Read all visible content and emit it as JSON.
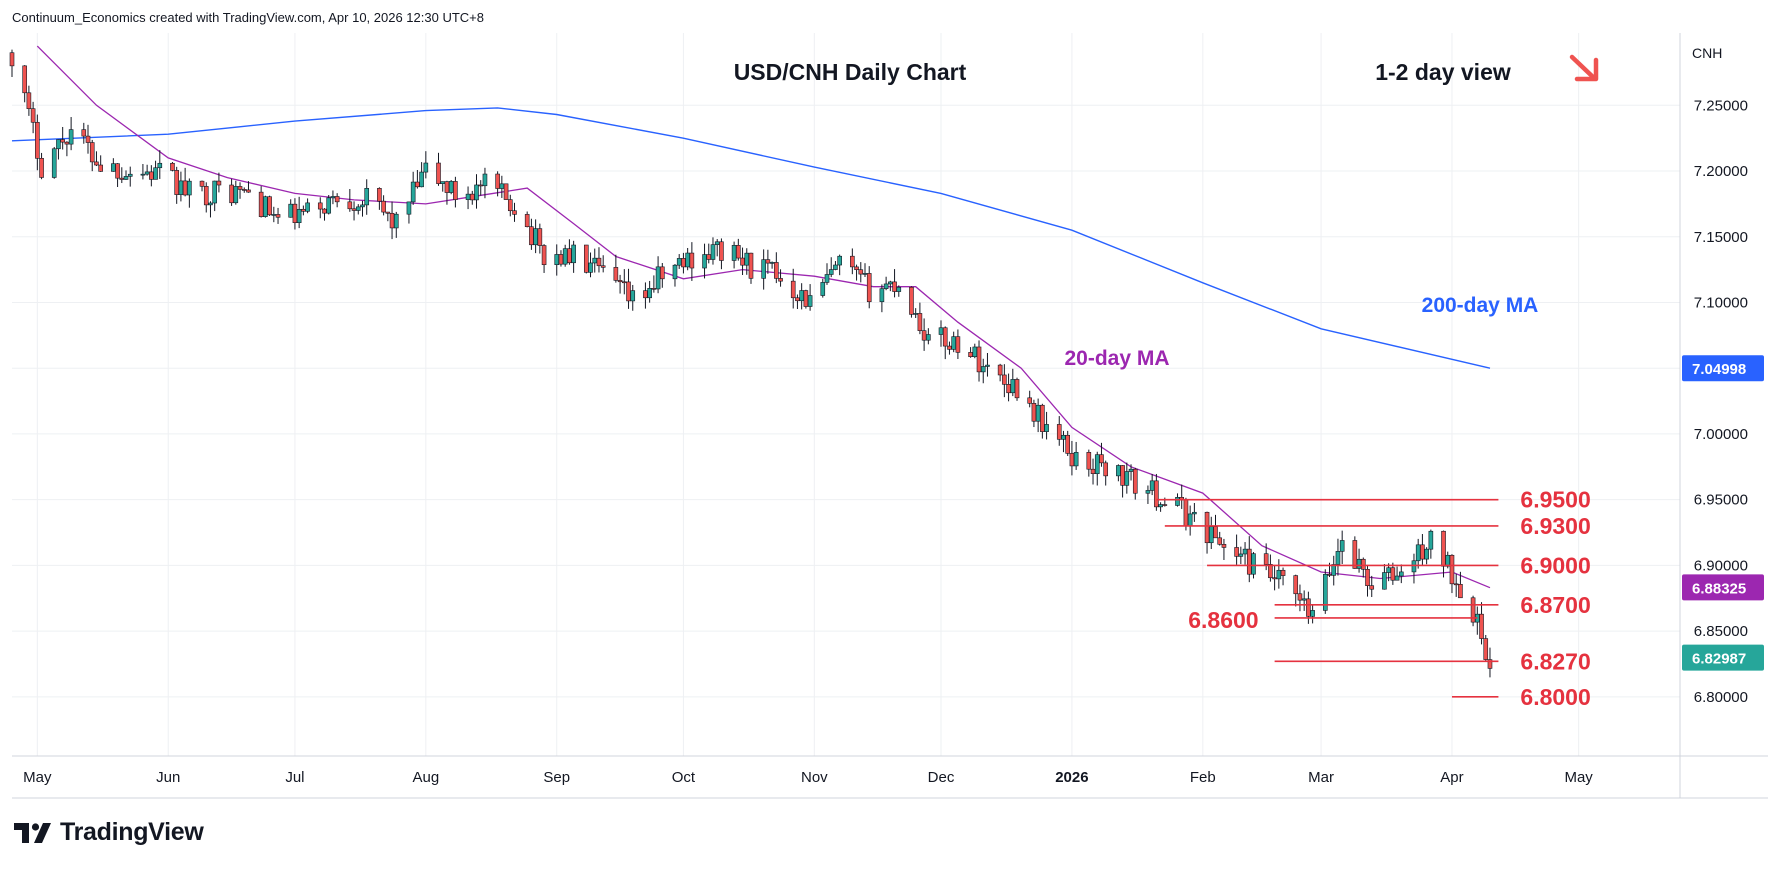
{
  "attribution": "Continuum_Economics created with TradingView.com, Apr 10, 2026 12:30 UTC+8",
  "brand": {
    "name": "TradingView",
    "icon": "tradingview-logo-icon"
  },
  "colors": {
    "up": "#26a69a",
    "down": "#ef5350",
    "wick": "#131722",
    "ma20": "#9c27b0",
    "ma200": "#2962ff",
    "level": "#e5323f",
    "grid": "#eef0f3",
    "axis_text": "#131722"
  },
  "chart_data": {
    "type": "candlestick",
    "title": "USD/CNH Daily Chart",
    "view_label": "1-2 day view",
    "view_icon": "arrow-down-right-icon",
    "symbol": "CNH",
    "x_ticks": [
      "May",
      "Jun",
      "Jul",
      "Aug",
      "Sep",
      "Oct",
      "Nov",
      "Dec",
      "2026",
      "Feb",
      "Mar",
      "Apr",
      "May"
    ],
    "y_ticks": [
      "7.25000",
      "7.20000",
      "7.15000",
      "7.10000",
      "7.05000",
      "7.00000",
      "6.95000",
      "6.90000",
      "6.85000",
      "6.80000"
    ],
    "ylim": [
      6.755,
      7.305
    ],
    "date_range": [
      "2025-04-25",
      "2026-05-25"
    ],
    "grid": true,
    "price_badges": [
      {
        "value": "7.04998",
        "series": "200-day MA",
        "color": "#2962ff"
      },
      {
        "value": "6.88325",
        "series": "20-day MA",
        "color": "#9c27b0"
      },
      {
        "value": "6.82987",
        "series": "Last price",
        "color": "#26a69a"
      }
    ],
    "annotations": [
      {
        "text": "20-day MA",
        "color": "#9c27b0"
      },
      {
        "text": "200-day MA",
        "color": "#2962ff"
      }
    ],
    "levels": [
      {
        "label": "6.9500",
        "value": 6.95,
        "from": "2026-01-21",
        "to": "2026-04-12",
        "label_side": "right"
      },
      {
        "label": "6.9300",
        "value": 6.93,
        "from": "2026-01-23",
        "to": "2026-04-12",
        "label_side": "right"
      },
      {
        "label": "6.9000",
        "value": 6.9,
        "from": "2026-02-02",
        "to": "2026-04-12",
        "label_side": "right"
      },
      {
        "label": "6.8700",
        "value": 6.87,
        "from": "2026-02-18",
        "to": "2026-04-12",
        "label_side": "right"
      },
      {
        "label": "6.8600",
        "value": 6.86,
        "from": "2026-02-18",
        "to": "2026-04-07",
        "label_side": "left"
      },
      {
        "label": "6.8270",
        "value": 6.827,
        "from": "2026-02-18",
        "to": "2026-04-12",
        "label_side": "right"
      },
      {
        "label": "6.8000",
        "value": 6.8,
        "from": "2026-04-01",
        "to": "2026-04-12",
        "label_side": "right"
      }
    ],
    "closes": [
      {
        "date": "2025-04-25",
        "close": 7.29
      },
      {
        "date": "2025-05-02",
        "close": 7.205
      },
      {
        "date": "2025-05-09",
        "close": 7.232
      },
      {
        "date": "2025-05-16",
        "close": 7.205
      },
      {
        "date": "2025-05-23",
        "close": 7.2
      },
      {
        "date": "2025-05-30",
        "close": 7.198
      },
      {
        "date": "2025-06-06",
        "close": 7.183
      },
      {
        "date": "2025-06-13",
        "close": 7.185
      },
      {
        "date": "2025-06-20",
        "close": 7.183
      },
      {
        "date": "2025-06-27",
        "close": 7.163
      },
      {
        "date": "2025-07-04",
        "close": 7.168
      },
      {
        "date": "2025-07-11",
        "close": 7.18
      },
      {
        "date": "2025-07-18",
        "close": 7.178
      },
      {
        "date": "2025-07-25",
        "close": 7.16
      },
      {
        "date": "2025-08-01",
        "close": 7.2
      },
      {
        "date": "2025-08-08",
        "close": 7.182
      },
      {
        "date": "2025-08-15",
        "close": 7.188
      },
      {
        "date": "2025-08-22",
        "close": 7.175
      },
      {
        "date": "2025-08-29",
        "close": 7.135
      },
      {
        "date": "2025-09-05",
        "close": 7.135
      },
      {
        "date": "2025-09-12",
        "close": 7.12
      },
      {
        "date": "2025-09-19",
        "close": 7.1
      },
      {
        "date": "2025-09-26",
        "close": 7.12
      },
      {
        "date": "2025-10-03",
        "close": 7.135
      },
      {
        "date": "2025-10-10",
        "close": 7.14
      },
      {
        "date": "2025-10-17",
        "close": 7.128
      },
      {
        "date": "2025-10-24",
        "close": 7.12
      },
      {
        "date": "2025-10-31",
        "close": 7.1
      },
      {
        "date": "2025-11-07",
        "close": 7.128
      },
      {
        "date": "2025-11-14",
        "close": 7.11
      },
      {
        "date": "2025-11-21",
        "close": 7.115
      },
      {
        "date": "2025-11-28",
        "close": 7.072
      },
      {
        "date": "2025-12-05",
        "close": 7.07
      },
      {
        "date": "2025-12-12",
        "close": 7.05
      },
      {
        "date": "2025-12-19",
        "close": 7.035
      },
      {
        "date": "2025-12-26",
        "close": 7.005
      },
      {
        "date": "2026-01-02",
        "close": 6.98
      },
      {
        "date": "2026-01-09",
        "close": 6.975
      },
      {
        "date": "2026-01-16",
        "close": 6.962
      },
      {
        "date": "2026-01-23",
        "close": 6.95
      },
      {
        "date": "2026-01-30",
        "close": 6.935
      },
      {
        "date": "2026-02-06",
        "close": 6.915
      },
      {
        "date": "2026-02-13",
        "close": 6.9
      },
      {
        "date": "2026-02-20",
        "close": 6.885
      },
      {
        "date": "2026-02-27",
        "close": 6.86
      },
      {
        "date": "2026-03-06",
        "close": 6.92
      },
      {
        "date": "2026-03-13",
        "close": 6.885
      },
      {
        "date": "2026-03-20",
        "close": 6.895
      },
      {
        "date": "2026-03-27",
        "close": 6.918
      },
      {
        "date": "2026-04-03",
        "close": 6.885
      },
      {
        "date": "2026-04-07",
        "close": 6.86
      },
      {
        "date": "2026-04-08",
        "close": 6.835
      },
      {
        "date": "2026-04-10",
        "close": 6.83
      }
    ],
    "ma20": [
      {
        "date": "2025-05-01",
        "value": 7.295
      },
      {
        "date": "2025-05-15",
        "value": 7.25
      },
      {
        "date": "2025-06-01",
        "value": 7.21
      },
      {
        "date": "2025-06-15",
        "value": 7.195
      },
      {
        "date": "2025-07-01",
        "value": 7.183
      },
      {
        "date": "2025-07-15",
        "value": 7.178
      },
      {
        "date": "2025-08-01",
        "value": 7.175
      },
      {
        "date": "2025-08-15",
        "value": 7.182
      },
      {
        "date": "2025-08-25",
        "value": 7.187
      },
      {
        "date": "2025-09-05",
        "value": 7.16
      },
      {
        "date": "2025-09-15",
        "value": 7.135
      },
      {
        "date": "2025-10-01",
        "value": 7.118
      },
      {
        "date": "2025-10-15",
        "value": 7.125
      },
      {
        "date": "2025-11-01",
        "value": 7.12
      },
      {
        "date": "2025-11-15",
        "value": 7.112
      },
      {
        "date": "2025-11-25",
        "value": 7.112
      },
      {
        "date": "2025-12-05",
        "value": 7.085
      },
      {
        "date": "2025-12-20",
        "value": 7.05
      },
      {
        "date": "2026-01-01",
        "value": 7.005
      },
      {
        "date": "2026-01-15",
        "value": 6.975
      },
      {
        "date": "2026-02-01",
        "value": 6.955
      },
      {
        "date": "2026-02-15",
        "value": 6.915
      },
      {
        "date": "2026-03-01",
        "value": 6.895
      },
      {
        "date": "2026-03-15",
        "value": 6.89
      },
      {
        "date": "2026-04-01",
        "value": 6.895
      },
      {
        "date": "2026-04-10",
        "value": 6.883
      }
    ],
    "ma200": [
      {
        "date": "2025-04-25",
        "value": 7.223
      },
      {
        "date": "2025-06-01",
        "value": 7.228
      },
      {
        "date": "2025-07-01",
        "value": 7.238
      },
      {
        "date": "2025-08-01",
        "value": 7.246
      },
      {
        "date": "2025-08-18",
        "value": 7.248
      },
      {
        "date": "2025-09-01",
        "value": 7.243
      },
      {
        "date": "2025-10-01",
        "value": 7.225
      },
      {
        "date": "2025-11-01",
        "value": 7.203
      },
      {
        "date": "2025-12-01",
        "value": 7.183
      },
      {
        "date": "2026-01-01",
        "value": 7.155
      },
      {
        "date": "2026-02-01",
        "value": 7.115
      },
      {
        "date": "2026-03-01",
        "value": 7.08
      },
      {
        "date": "2026-04-10",
        "value": 7.05
      }
    ]
  }
}
